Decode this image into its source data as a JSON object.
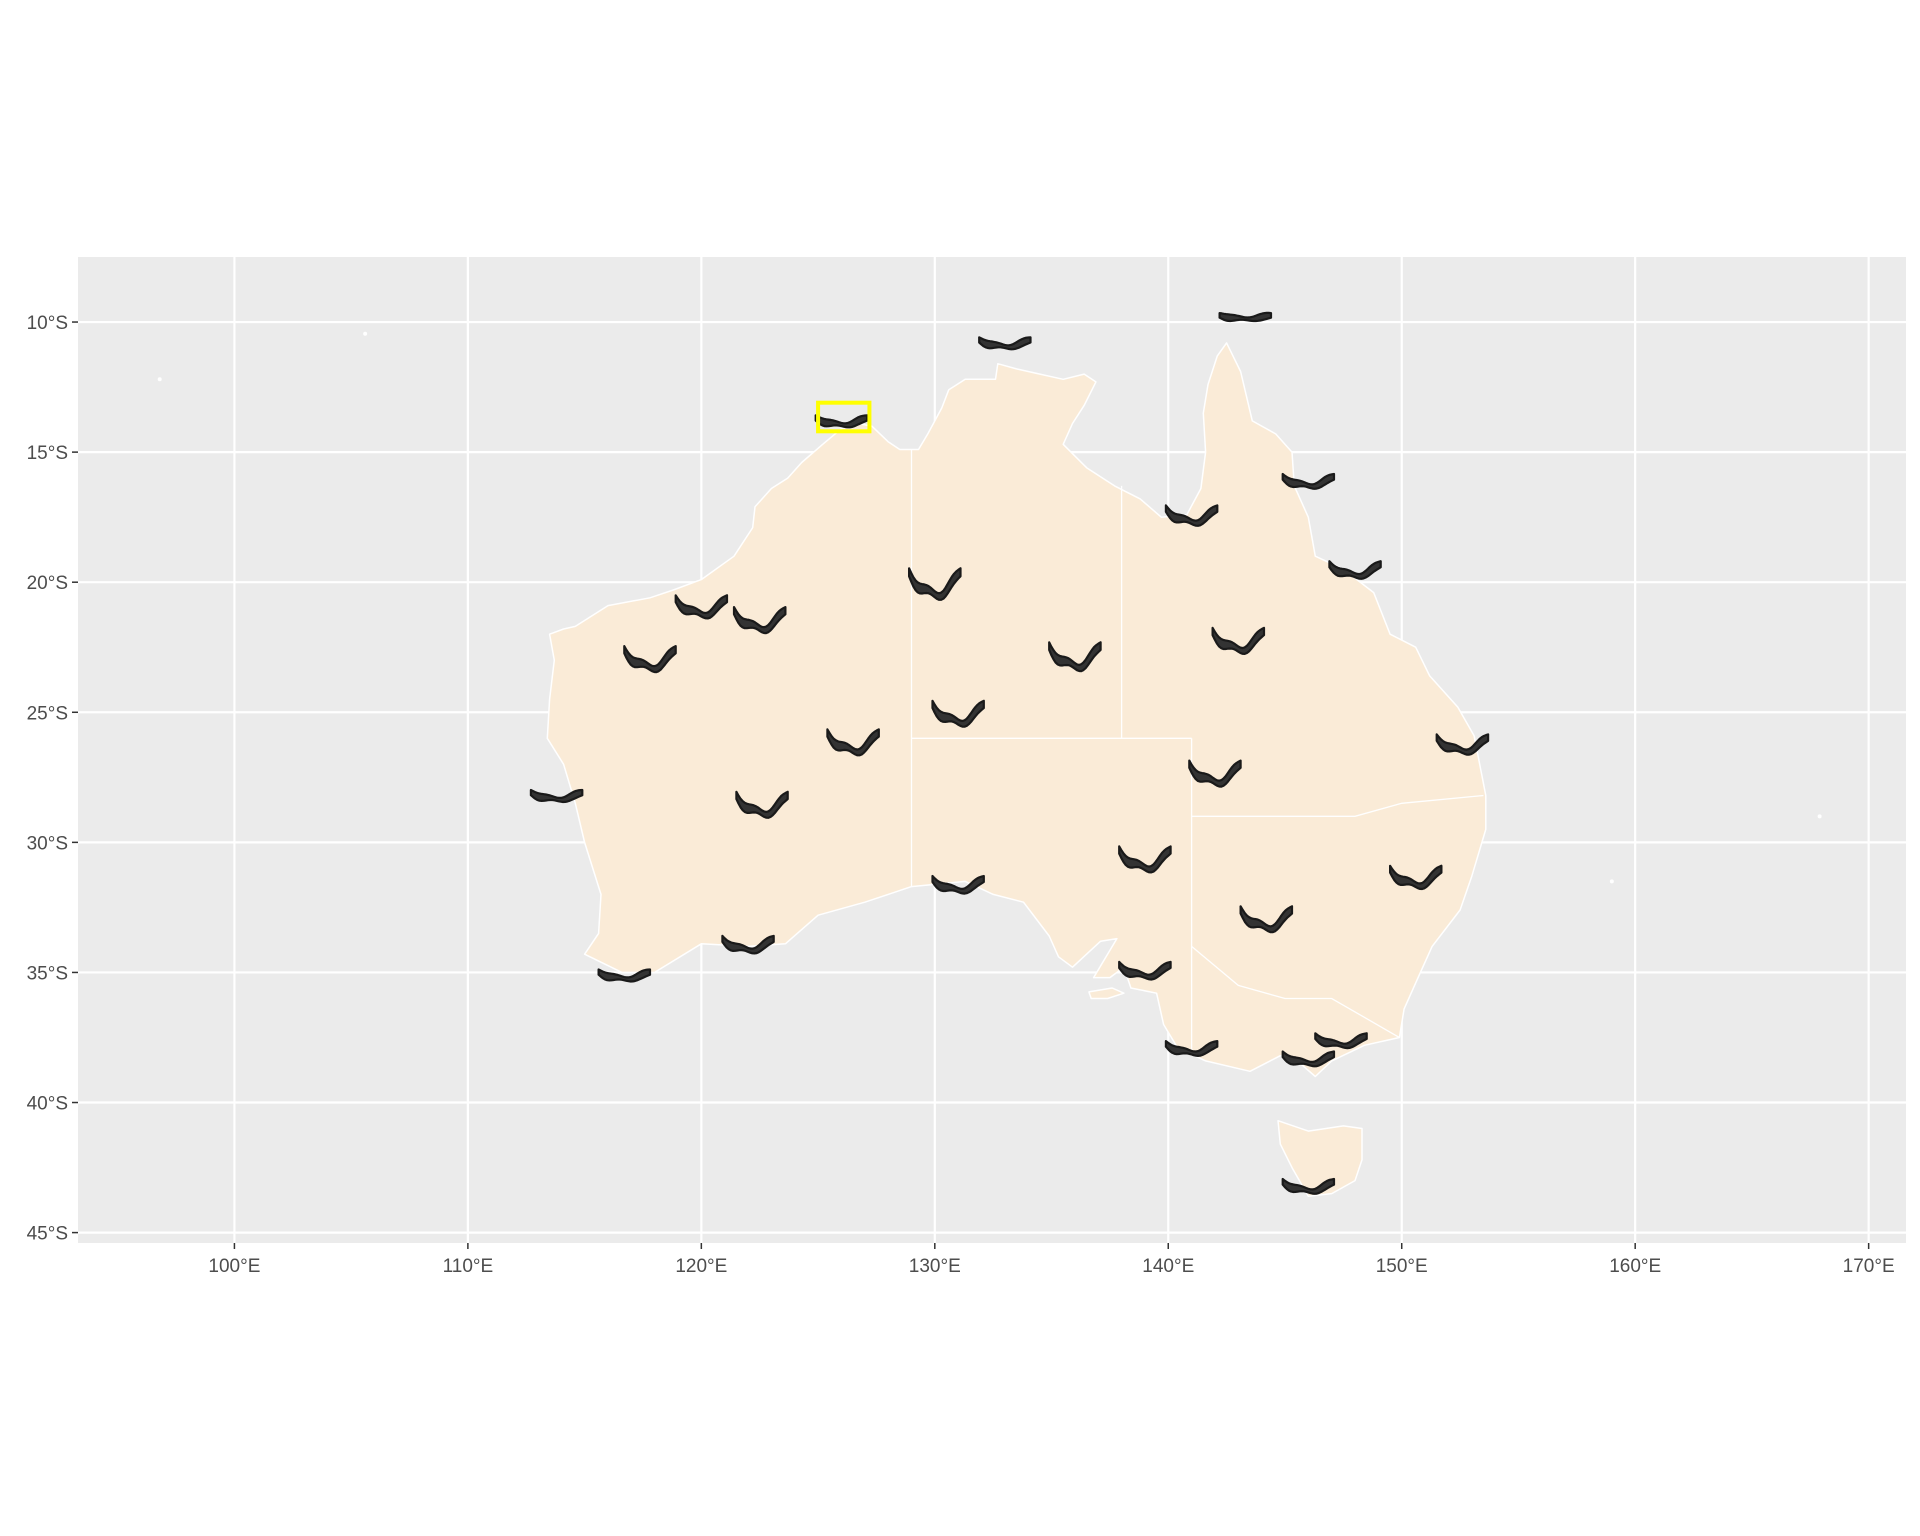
{
  "map": {
    "projection": "equirectangular",
    "lon_range": [
      93.3,
      171.6
    ],
    "lat_range": [
      -45.4,
      -7.5
    ],
    "panel_background": "#ebebeb",
    "grid_color": "#ffffff",
    "land_fill": "#faebd7",
    "land_stroke": "#ffffff",
    "glyph_color": "#1a1a1a",
    "highlight_color": "#ffff00",
    "lon_ticks": [
      {
        "value": 100,
        "label": "100°E"
      },
      {
        "value": 110,
        "label": "110°E"
      },
      {
        "value": 120,
        "label": "120°E"
      },
      {
        "value": 130,
        "label": "130°E"
      },
      {
        "value": 140,
        "label": "140°E"
      },
      {
        "value": 150,
        "label": "150°E"
      },
      {
        "value": 160,
        "label": "160°E"
      },
      {
        "value": 170,
        "label": "170°E"
      }
    ],
    "lat_ticks": [
      {
        "value": -10,
        "label": "10°S"
      },
      {
        "value": -15,
        "label": "15°S"
      },
      {
        "value": -20,
        "label": "20°S"
      },
      {
        "value": -25,
        "label": "25°S"
      },
      {
        "value": -30,
        "label": "30°S"
      },
      {
        "value": -35,
        "label": "35°S"
      },
      {
        "value": -40,
        "label": "40°S"
      },
      {
        "value": -45,
        "label": "45°S"
      }
    ],
    "highlight_box": {
      "lon": [
        125.0,
        127.2
      ],
      "lat": [
        -14.2,
        -13.1
      ]
    },
    "glyphs": [
      {
        "lon": 143.3,
        "lat": -9.8,
        "depth": 0.15
      },
      {
        "lon": 133.0,
        "lat": -10.8,
        "depth": 0.3
      },
      {
        "lon": 126.0,
        "lat": -13.8,
        "depth": 0.3
      },
      {
        "lon": 146.0,
        "lat": -16.1,
        "depth": 0.4
      },
      {
        "lon": 141.0,
        "lat": -17.4,
        "depth": 0.6
      },
      {
        "lon": 148.0,
        "lat": -19.5,
        "depth": 0.5
      },
      {
        "lon": 130.0,
        "lat": -20.0,
        "depth": 1.0
      },
      {
        "lon": 120.0,
        "lat": -20.9,
        "depth": 0.7
      },
      {
        "lon": 122.5,
        "lat": -21.4,
        "depth": 0.8
      },
      {
        "lon": 143.0,
        "lat": -22.2,
        "depth": 0.8
      },
      {
        "lon": 136.0,
        "lat": -22.8,
        "depth": 0.9
      },
      {
        "lon": 117.8,
        "lat": -22.9,
        "depth": 0.8
      },
      {
        "lon": 131.0,
        "lat": -25.0,
        "depth": 0.8
      },
      {
        "lon": 126.5,
        "lat": -26.1,
        "depth": 0.8
      },
      {
        "lon": 152.6,
        "lat": -26.2,
        "depth": 0.6
      },
      {
        "lon": 142.0,
        "lat": -27.3,
        "depth": 0.8
      },
      {
        "lon": 113.8,
        "lat": -28.2,
        "depth": 0.3
      },
      {
        "lon": 122.6,
        "lat": -28.5,
        "depth": 0.8
      },
      {
        "lon": 139.0,
        "lat": -30.6,
        "depth": 0.8
      },
      {
        "lon": 150.6,
        "lat": -31.3,
        "depth": 0.7
      },
      {
        "lon": 131.0,
        "lat": -31.6,
        "depth": 0.5
      },
      {
        "lon": 144.2,
        "lat": -32.9,
        "depth": 0.8
      },
      {
        "lon": 122.0,
        "lat": -33.9,
        "depth": 0.5
      },
      {
        "lon": 139.0,
        "lat": -34.9,
        "depth": 0.5
      },
      {
        "lon": 116.7,
        "lat": -35.1,
        "depth": 0.3
      },
      {
        "lon": 147.4,
        "lat": -37.6,
        "depth": 0.4
      },
      {
        "lon": 141.0,
        "lat": -37.9,
        "depth": 0.4
      },
      {
        "lon": 146.0,
        "lat": -38.3,
        "depth": 0.4
      },
      {
        "lon": 146.0,
        "lat": -43.2,
        "depth": 0.4
      }
    ],
    "islands": [
      {
        "lon": 105.6,
        "lat": -10.45
      },
      {
        "lon": 96.8,
        "lat": -12.2
      },
      {
        "lon": 167.9,
        "lat": -29.0
      },
      {
        "lon": 159.0,
        "lat": -31.5
      }
    ],
    "mainland": [
      [
        113.5,
        -22.0
      ],
      [
        114.1,
        -21.8
      ],
      [
        114.6,
        -21.7
      ],
      [
        116.0,
        -20.9
      ],
      [
        117.8,
        -20.6
      ],
      [
        118.8,
        -20.3
      ],
      [
        120.0,
        -19.9
      ],
      [
        121.4,
        -19.0
      ],
      [
        122.2,
        -17.9
      ],
      [
        122.3,
        -17.1
      ],
      [
        123.0,
        -16.4
      ],
      [
        123.7,
        -16.0
      ],
      [
        124.3,
        -15.4
      ],
      [
        125.2,
        -14.7
      ],
      [
        126.0,
        -14.1
      ],
      [
        126.7,
        -13.9
      ],
      [
        127.3,
        -14.0
      ],
      [
        128.0,
        -14.6
      ],
      [
        128.5,
        -14.9
      ],
      [
        129.3,
        -14.9
      ],
      [
        129.7,
        -14.3
      ],
      [
        130.3,
        -13.3
      ],
      [
        130.6,
        -12.6
      ],
      [
        131.3,
        -12.2
      ],
      [
        132.6,
        -12.2
      ],
      [
        132.7,
        -11.6
      ],
      [
        133.5,
        -11.8
      ],
      [
        134.5,
        -12.0
      ],
      [
        135.5,
        -12.2
      ],
      [
        136.4,
        -12.0
      ],
      [
        136.9,
        -12.3
      ],
      [
        136.4,
        -13.2
      ],
      [
        135.9,
        -13.9
      ],
      [
        135.5,
        -14.7
      ],
      [
        136.5,
        -15.6
      ],
      [
        137.7,
        -16.3
      ],
      [
        138.8,
        -16.8
      ],
      [
        139.7,
        -17.5
      ],
      [
        140.8,
        -17.4
      ],
      [
        141.4,
        -16.4
      ],
      [
        141.6,
        -15.0
      ],
      [
        141.5,
        -13.5
      ],
      [
        141.7,
        -12.4
      ],
      [
        142.1,
        -11.3
      ],
      [
        142.5,
        -10.8
      ],
      [
        143.1,
        -11.9
      ],
      [
        143.6,
        -13.8
      ],
      [
        144.6,
        -14.3
      ],
      [
        145.3,
        -15.0
      ],
      [
        145.4,
        -16.3
      ],
      [
        146.0,
        -17.5
      ],
      [
        146.3,
        -19.0
      ],
      [
        147.5,
        -19.5
      ],
      [
        148.8,
        -20.4
      ],
      [
        149.5,
        -22.0
      ],
      [
        150.6,
        -22.5
      ],
      [
        151.2,
        -23.6
      ],
      [
        152.4,
        -24.8
      ],
      [
        153.1,
        -25.9
      ],
      [
        153.6,
        -28.2
      ],
      [
        153.6,
        -29.5
      ],
      [
        153.0,
        -31.3
      ],
      [
        152.5,
        -32.6
      ],
      [
        151.3,
        -34.0
      ],
      [
        150.7,
        -35.2
      ],
      [
        150.1,
        -36.4
      ],
      [
        149.9,
        -37.5
      ],
      [
        148.4,
        -37.8
      ],
      [
        147.0,
        -38.4
      ],
      [
        146.3,
        -39.0
      ],
      [
        145.4,
        -38.3
      ],
      [
        144.8,
        -38.2
      ],
      [
        143.5,
        -38.8
      ],
      [
        141.6,
        -38.4
      ],
      [
        140.4,
        -37.9
      ],
      [
        139.8,
        -37.0
      ],
      [
        139.5,
        -35.8
      ],
      [
        138.4,
        -35.6
      ],
      [
        138.1,
        -34.8
      ],
      [
        137.5,
        -35.2
      ],
      [
        136.8,
        -35.2
      ],
      [
        137.8,
        -33.7
      ],
      [
        137.1,
        -33.8
      ],
      [
        135.9,
        -34.8
      ],
      [
        135.3,
        -34.4
      ],
      [
        134.9,
        -33.6
      ],
      [
        133.8,
        -32.3
      ],
      [
        132.5,
        -32.0
      ],
      [
        131.3,
        -31.5
      ],
      [
        129.0,
        -31.7
      ],
      [
        127.0,
        -32.3
      ],
      [
        125.0,
        -32.8
      ],
      [
        123.6,
        -33.9
      ],
      [
        122.0,
        -34.0
      ],
      [
        120.0,
        -33.9
      ],
      [
        118.0,
        -35.0
      ],
      [
        116.6,
        -35.0
      ],
      [
        115.0,
        -34.3
      ],
      [
        115.6,
        -33.5
      ],
      [
        115.7,
        -32.0
      ],
      [
        115.0,
        -30.0
      ],
      [
        114.6,
        -28.5
      ],
      [
        114.1,
        -27.0
      ],
      [
        113.4,
        -26.0
      ],
      [
        113.5,
        -24.5
      ],
      [
        113.7,
        -23.0
      ]
    ],
    "tasmania": [
      [
        144.7,
        -40.7
      ],
      [
        146.0,
        -41.1
      ],
      [
        147.5,
        -40.9
      ],
      [
        148.3,
        -41.0
      ],
      [
        148.3,
        -42.2
      ],
      [
        148.0,
        -43.0
      ],
      [
        147.0,
        -43.5
      ],
      [
        146.0,
        -43.6
      ],
      [
        145.3,
        -42.5
      ],
      [
        144.8,
        -41.6
      ]
    ],
    "kangaroo_island": [
      [
        136.6,
        -35.75
      ],
      [
        137.6,
        -35.6
      ],
      [
        138.1,
        -35.8
      ],
      [
        137.4,
        -36.0
      ],
      [
        136.7,
        -36.0
      ]
    ],
    "state_borders": [
      [
        [
          129.0,
          -14.9
        ],
        [
          129.0,
          -31.7
        ]
      ],
      [
        [
          129.0,
          -26.0
        ],
        [
          141.0,
          -26.0
        ]
      ],
      [
        [
          138.0,
          -16.3
        ],
        [
          138.0,
          -26.0
        ]
      ],
      [
        [
          141.0,
          -26.0
        ],
        [
          141.0,
          -38.2
        ]
      ],
      [
        [
          141.0,
          -29.0
        ],
        [
          148.0,
          -29.0
        ],
        [
          150.0,
          -28.5
        ],
        [
          153.5,
          -28.2
        ]
      ],
      [
        [
          141.0,
          -34.0
        ],
        [
          143.0,
          -35.5
        ],
        [
          145.0,
          -36.0
        ],
        [
          147.0,
          -36.0
        ],
        [
          149.9,
          -37.5
        ]
      ]
    ]
  }
}
